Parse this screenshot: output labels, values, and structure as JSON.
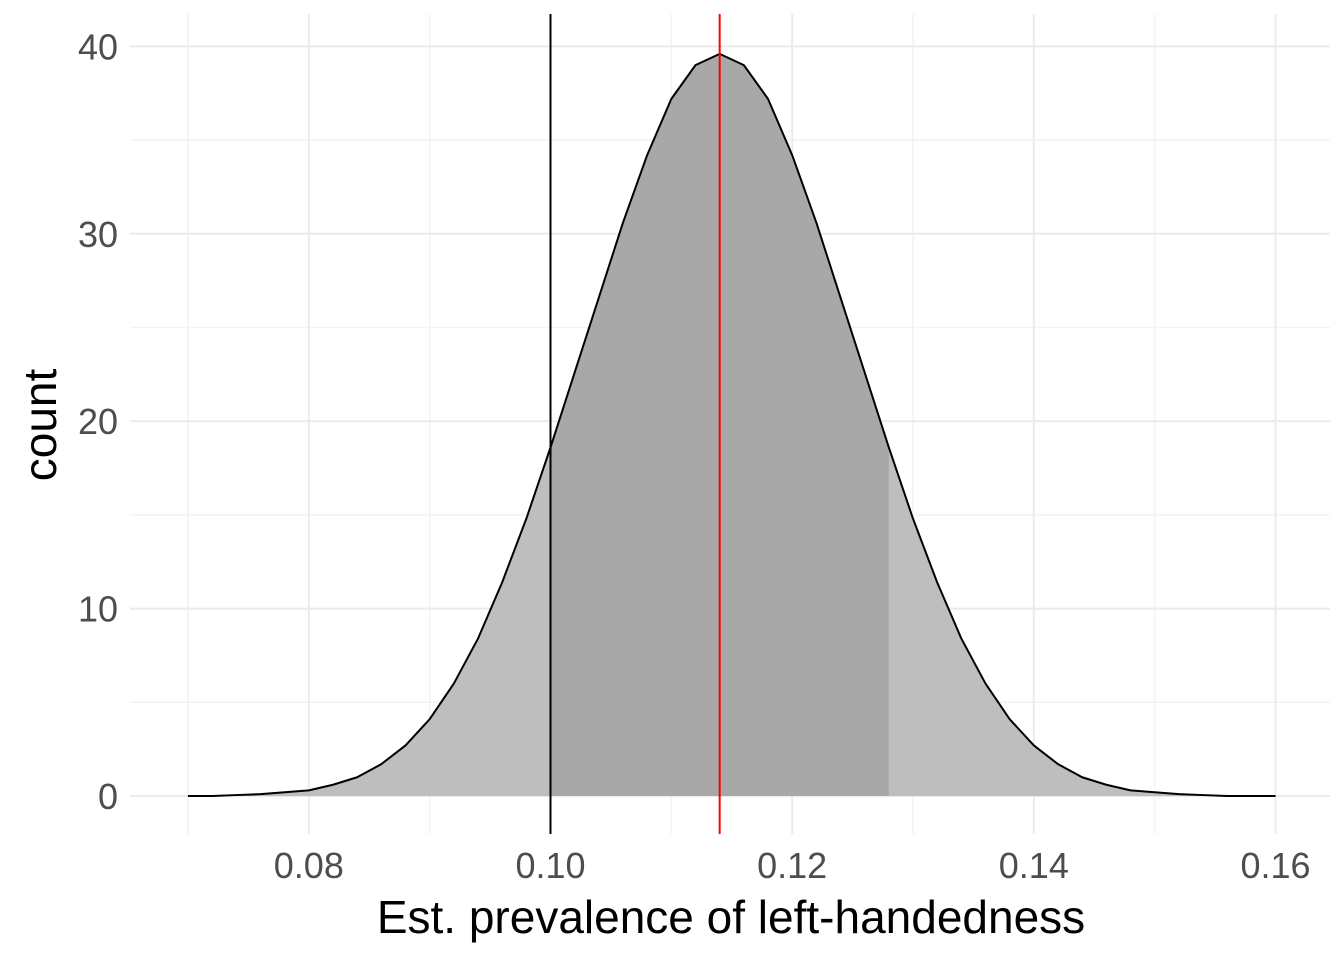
{
  "chart_data": {
    "type": "area",
    "xlabel": "Est. prevalence of left-handedness",
    "ylabel": "count",
    "xlim": [
      0.07,
      0.16
    ],
    "ylim": [
      0,
      40
    ],
    "x_ticks": [
      0.08,
      0.1,
      0.12,
      0.14,
      0.16
    ],
    "x_tick_labels": [
      "0.08",
      "0.10",
      "0.12",
      "0.14",
      "0.16"
    ],
    "y_ticks": [
      0,
      10,
      20,
      30,
      40
    ],
    "y_tick_labels": [
      "0",
      "10",
      "20",
      "30",
      "40"
    ],
    "grid": true,
    "curve": {
      "x": [
        0.07,
        0.072,
        0.074,
        0.076,
        0.078,
        0.08,
        0.082,
        0.084,
        0.086,
        0.088,
        0.09,
        0.092,
        0.094,
        0.096,
        0.098,
        0.1,
        0.102,
        0.104,
        0.106,
        0.108,
        0.11,
        0.112,
        0.114,
        0.116,
        0.118,
        0.12,
        0.122,
        0.124,
        0.126,
        0.128,
        0.13,
        0.132,
        0.134,
        0.136,
        0.138,
        0.14,
        0.142,
        0.144,
        0.146,
        0.148,
        0.15,
        0.152,
        0.154,
        0.156,
        0.158,
        0.16
      ],
      "y": [
        0.0,
        0.0,
        0.05,
        0.1,
        0.2,
        0.3,
        0.6,
        1.0,
        1.7,
        2.7,
        4.1,
        6.0,
        8.4,
        11.4,
        14.8,
        18.6,
        22.6,
        26.6,
        30.6,
        34.2,
        37.2,
        39.0,
        39.6,
        39.0,
        37.2,
        34.2,
        30.6,
        26.6,
        22.6,
        18.6,
        14.8,
        11.4,
        8.4,
        6.0,
        4.1,
        2.7,
        1.7,
        1.0,
        0.6,
        0.3,
        0.2,
        0.1,
        0.05,
        0.0,
        0.0,
        0.0
      ]
    },
    "shaded_interval": [
      0.1,
      0.128
    ],
    "vlines": [
      {
        "x": 0.1,
        "color": "#000000"
      },
      {
        "x": 0.114,
        "color": "#ff0000"
      }
    ],
    "colors": {
      "outer_fill": "#bebebe",
      "inner_fill": "#a8a8a8",
      "curve_line": "#000000",
      "grid_major": "#ebebeb",
      "grid_minor": "#f2f2f2"
    }
  }
}
